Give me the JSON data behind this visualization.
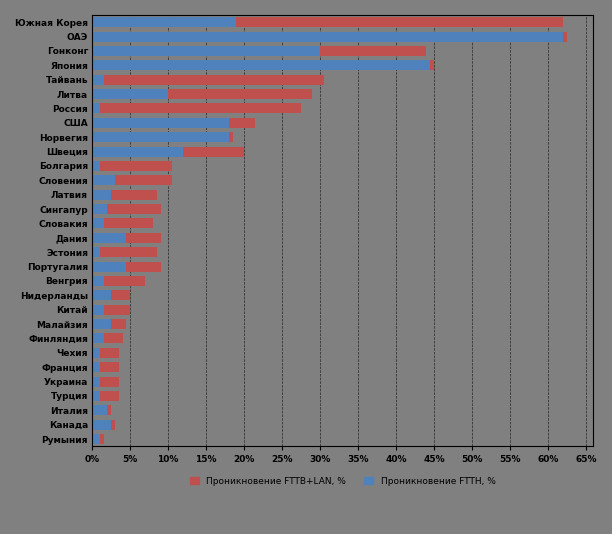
{
  "countries": [
    "Южная Корея",
    "ОАЭ",
    "Гонконг",
    "Япония",
    "Тайвань",
    "Литва",
    "Россия",
    "США",
    "Норвегия",
    "Швеция",
    "Болгария",
    "Словения",
    "Латвия",
    "Сингапур",
    "Словакия",
    "Дания",
    "Эстония",
    "Португалия",
    "Венгрия",
    "Нидерланды",
    "Китай",
    "Малайзия",
    "Финляндия",
    "Чехия",
    "Франция",
    "Украина",
    "Турция",
    "Италия",
    "Канада",
    "Румыния"
  ],
  "fttb_lan": [
    43.0,
    0.5,
    14.0,
    0.5,
    29.0,
    19.0,
    26.5,
    3.5,
    0.5,
    8.0,
    9.5,
    7.5,
    6.0,
    7.0,
    6.5,
    4.5,
    7.5,
    4.5,
    5.5,
    2.5,
    3.5,
    2.0,
    2.5,
    2.5,
    2.5,
    2.5,
    2.5,
    0.5,
    0.5,
    0.5
  ],
  "ftth": [
    19.0,
    62.0,
    30.0,
    44.5,
    1.5,
    10.0,
    1.0,
    18.0,
    18.0,
    12.0,
    1.0,
    3.0,
    2.5,
    2.0,
    1.5,
    4.5,
    1.0,
    4.5,
    1.5,
    2.5,
    1.5,
    2.5,
    1.5,
    1.0,
    1.0,
    1.0,
    1.0,
    2.0,
    2.5,
    1.0
  ],
  "color_fttb": "#c0504d",
  "color_ftth": "#4f81bd",
  "background_color": "#808080",
  "bar_height": 0.7,
  "xlabel_ticks": [
    0,
    5,
    10,
    15,
    20,
    25,
    30,
    35,
    40,
    45,
    50,
    55,
    60,
    65
  ],
  "legend_fttb": "Проникновение FTTB+LAN, %",
  "legend_ftth": "Проникновение FTTH, %"
}
